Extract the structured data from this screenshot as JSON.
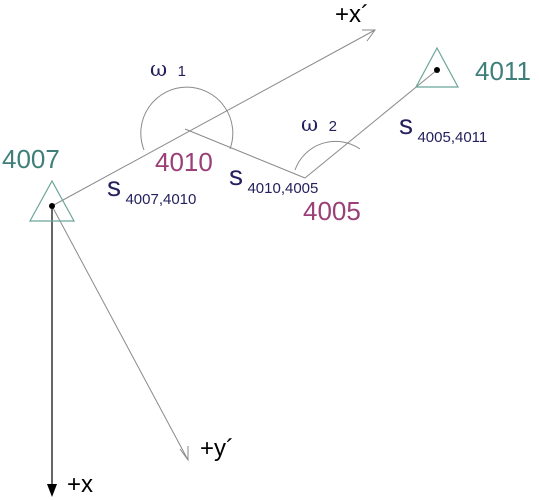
{
  "colors": {
    "line": "#8a8a8a",
    "axis": "#000000",
    "triangle": "#6ba59a",
    "fixed_point": "#3f7f7a",
    "new_point": "#9a3f78",
    "notation": "#24205e"
  },
  "points": {
    "p4007": "4007",
    "p4010": "4010",
    "p4005": "4005",
    "p4011": "4011"
  },
  "angles": {
    "w1": {
      "sym": "ω",
      "sub": "1"
    },
    "w2": {
      "sym": "ω",
      "sub": "2"
    }
  },
  "distances": {
    "s1": {
      "sym": "s",
      "sub": "4007,4010"
    },
    "s2": {
      "sym": "s",
      "sub": "4010,4005"
    },
    "s3": {
      "sym": "s",
      "sub": "4005,4011"
    }
  },
  "axes": {
    "x": "+x",
    "x_prime": "+x´",
    "y_prime": "+y´"
  }
}
